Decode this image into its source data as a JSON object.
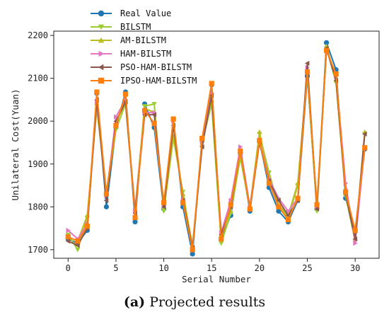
{
  "caption": {
    "letter": "(a)",
    "text": "Projected results"
  },
  "chart_data": {
    "type": "line",
    "xlabel": "Serial Number",
    "ylabel": "Unilateral Cost(Yuan)",
    "xlim": [
      -1.5,
      32.5
    ],
    "ylim": [
      1680,
      2210
    ],
    "xticks": [
      0,
      5,
      10,
      15,
      20,
      25,
      30
    ],
    "yticks": [
      1700,
      1800,
      1900,
      2000,
      2100,
      2200
    ],
    "grid": false,
    "legend_position": "top-left",
    "x": [
      0,
      1,
      2,
      3,
      4,
      5,
      6,
      7,
      8,
      9,
      10,
      11,
      12,
      13,
      14,
      15,
      16,
      17,
      18,
      19,
      20,
      21,
      22,
      23,
      24,
      25,
      26,
      27,
      28,
      29,
      30,
      31
    ],
    "series": [
      {
        "name": "Real Value",
        "color": "#1f77b4",
        "marker": "circle",
        "values": [
          1725,
          1715,
          1745,
          2065,
          1800,
          1985,
          2068,
          1765,
          2040,
          1985,
          1795,
          2005,
          1800,
          1690,
          1955,
          2085,
          1725,
          1780,
          1925,
          1790,
          1955,
          1845,
          1790,
          1765,
          1815,
          2105,
          1795,
          2183,
          2120,
          1820,
          1745,
          1935
        ]
      },
      {
        "name": "BILSTM",
        "color": "#9acd32",
        "marker": "triangle-down",
        "values": [
          1735,
          1700,
          1775,
          2035,
          1830,
          1980,
          2040,
          1790,
          2035,
          2040,
          1790,
          1960,
          1835,
          1705,
          1950,
          2040,
          1715,
          1785,
          1915,
          1795,
          1970,
          1880,
          1800,
          1775,
          1850,
          2110,
          1790,
          2170,
          2090,
          1825,
          1720,
          1970
        ]
      },
      {
        "name": "AM-BILSTM",
        "color": "#bcbd22",
        "marker": "triangle-up",
        "values": [
          1730,
          1720,
          1780,
          2030,
          1835,
          1995,
          2045,
          1795,
          2030,
          2020,
          1800,
          1965,
          1830,
          1710,
          1945,
          2050,
          1735,
          1790,
          1925,
          1800,
          1975,
          1870,
          1805,
          1780,
          1855,
          2115,
          1800,
          2175,
          2095,
          1830,
          1725,
          1975
        ]
      },
      {
        "name": "HAM-BILSTM",
        "color": "#e377c2",
        "marker": "triangle-right",
        "values": [
          1745,
          1725,
          1760,
          2045,
          1825,
          2010,
          2050,
          1790,
          2020,
          2020,
          1805,
          2000,
          1815,
          1705,
          1950,
          2065,
          1740,
          1815,
          1940,
          1800,
          1955,
          1865,
          1820,
          1790,
          1820,
          2125,
          1800,
          2165,
          2105,
          1855,
          1715,
          1940
        ]
      },
      {
        "name": "PSO-HAM-BILSTM",
        "color": "#8c564b",
        "marker": "triangle-left",
        "values": [
          1720,
          1710,
          1750,
          2050,
          1815,
          2000,
          2045,
          1785,
          2015,
          2015,
          1800,
          1990,
          1815,
          1705,
          1940,
          2060,
          1735,
          1800,
          1930,
          1795,
          1950,
          1860,
          1815,
          1780,
          1815,
          2135,
          1795,
          2170,
          2095,
          1830,
          1725,
          1970
        ]
      },
      {
        "name": "IPSO-HAM-BILSTM",
        "color": "#ff7f0e",
        "marker": "square",
        "values": [
          1730,
          1720,
          1755,
          2068,
          1830,
          1990,
          2063,
          1775,
          2025,
          1995,
          1810,
          2005,
          1810,
          1700,
          1960,
          2088,
          1725,
          1805,
          1930,
          1795,
          1955,
          1855,
          1800,
          1770,
          1820,
          2115,
          1805,
          2165,
          2110,
          1835,
          1745,
          1938
        ]
      }
    ]
  }
}
